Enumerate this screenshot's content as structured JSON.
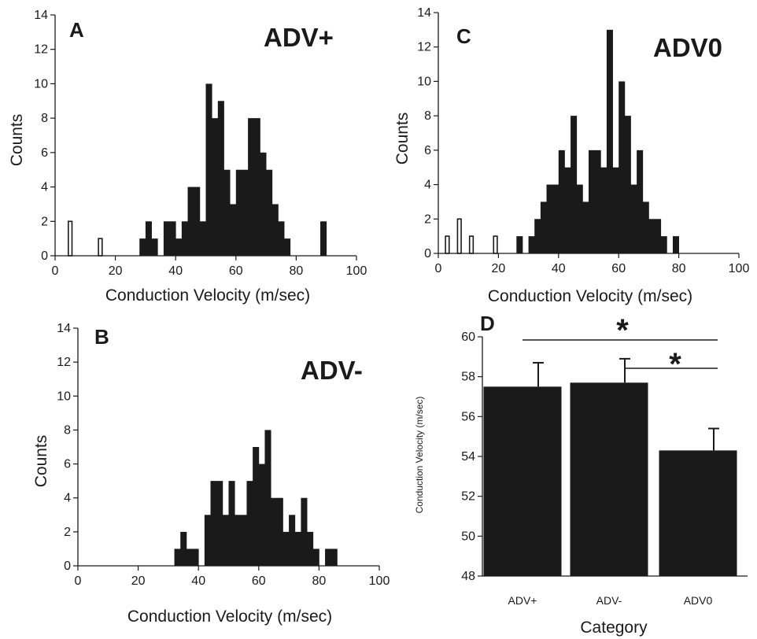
{
  "chart_data": [
    {
      "panel": "A",
      "type": "bar",
      "tag": "ADV+",
      "xlabel": "Conduction Velocity (m/sec)",
      "ylabel": "Counts",
      "xlim": [
        0,
        100
      ],
      "ylim": [
        0,
        14
      ],
      "xticks": [
        "0",
        "20",
        "40",
        "60",
        "80",
        "100"
      ],
      "yticks": [
        "0",
        "2",
        "4",
        "6",
        "8",
        "10",
        "12",
        "14"
      ],
      "bin_width": 2,
      "series": [
        {
          "style": "open",
          "bins": [
            [
              4,
              2
            ],
            [
              14,
              1
            ]
          ]
        },
        {
          "style": "filled",
          "bins": [
            [
              28,
              1
            ],
            [
              30,
              2
            ],
            [
              32,
              1
            ],
            [
              36,
              2
            ],
            [
              38,
              2
            ],
            [
              40,
              1
            ],
            [
              42,
              2
            ],
            [
              44,
              4
            ],
            [
              46,
              4
            ],
            [
              48,
              2
            ],
            [
              50,
              10
            ],
            [
              52,
              8
            ],
            [
              54,
              9
            ],
            [
              56,
              5
            ],
            [
              58,
              3
            ],
            [
              60,
              5
            ],
            [
              62,
              5
            ],
            [
              64,
              8
            ],
            [
              66,
              8
            ],
            [
              68,
              6
            ],
            [
              70,
              5
            ],
            [
              72,
              3
            ],
            [
              74,
              2
            ],
            [
              76,
              1
            ],
            [
              88,
              2
            ]
          ]
        }
      ]
    },
    {
      "panel": "B",
      "type": "bar",
      "tag": "ADV-",
      "xlabel": "Conduction Velocity (m/sec)",
      "ylabel": "Counts",
      "xlim": [
        0,
        100
      ],
      "ylim": [
        0,
        14
      ],
      "xticks": [
        "0",
        "20",
        "40",
        "60",
        "80",
        "100"
      ],
      "yticks": [
        "0",
        "2",
        "4",
        "6",
        "8",
        "10",
        "12",
        "14"
      ],
      "bin_width": 2,
      "series": [
        {
          "style": "filled",
          "bins": [
            [
              32,
              1
            ],
            [
              34,
              2
            ],
            [
              36,
              1
            ],
            [
              38,
              1
            ],
            [
              42,
              3
            ],
            [
              44,
              5
            ],
            [
              46,
              5
            ],
            [
              48,
              3
            ],
            [
              50,
              5
            ],
            [
              52,
              3
            ],
            [
              54,
              3
            ],
            [
              56,
              5
            ],
            [
              58,
              7
            ],
            [
              60,
              6
            ],
            [
              62,
              8
            ],
            [
              64,
              4
            ],
            [
              66,
              4
            ],
            [
              68,
              2
            ],
            [
              70,
              3
            ],
            [
              72,
              2
            ],
            [
              74,
              4
            ],
            [
              76,
              2
            ],
            [
              78,
              1
            ],
            [
              82,
              1
            ],
            [
              84,
              1
            ]
          ]
        }
      ]
    },
    {
      "panel": "C",
      "type": "bar",
      "tag": "ADV0",
      "xlabel": "Conduction Velocity (m/sec)",
      "ylabel": "Counts",
      "xlim": [
        0,
        100
      ],
      "ylim": [
        0,
        14
      ],
      "xticks": [
        "0",
        "20",
        "40",
        "60",
        "80",
        "100"
      ],
      "yticks": [
        "0",
        "2",
        "4",
        "6",
        "8",
        "10",
        "12",
        "14"
      ],
      "bin_width": 2,
      "series": [
        {
          "style": "open",
          "bins": [
            [
              2,
              1
            ],
            [
              6,
              2
            ],
            [
              10,
              1
            ],
            [
              18,
              1
            ]
          ]
        },
        {
          "style": "filled",
          "bins": [
            [
              26,
              1
            ],
            [
              30,
              1
            ],
            [
              32,
              2
            ],
            [
              34,
              3
            ],
            [
              36,
              4
            ],
            [
              38,
              4
            ],
            [
              40,
              6
            ],
            [
              42,
              5
            ],
            [
              44,
              8
            ],
            [
              46,
              4
            ],
            [
              48,
              3
            ],
            [
              50,
              6
            ],
            [
              52,
              6
            ],
            [
              54,
              5
            ],
            [
              56,
              13
            ],
            [
              58,
              5
            ],
            [
              60,
              10
            ],
            [
              62,
              8
            ],
            [
              64,
              4
            ],
            [
              66,
              6
            ],
            [
              68,
              3
            ],
            [
              70,
              2
            ],
            [
              72,
              2
            ],
            [
              74,
              1
            ],
            [
              78,
              1
            ]
          ]
        }
      ]
    },
    {
      "panel": "D",
      "type": "bar",
      "xlabel": "Category",
      "ylabel": "Conduction Velocity (m/sec)",
      "categories": [
        "ADV+",
        "ADV-",
        "ADV0"
      ],
      "values": [
        57.5,
        57.7,
        54.3
      ],
      "errors": [
        1.2,
        1.2,
        1.1
      ],
      "ylim": [
        48,
        60
      ],
      "yticks": [
        "48",
        "50",
        "52",
        "54",
        "56",
        "58",
        "60"
      ],
      "significance": [
        {
          "from": "ADV+",
          "to": "ADV0",
          "marker": "*"
        },
        {
          "from": "ADV-",
          "to": "ADV0",
          "marker": "*"
        }
      ]
    }
  ]
}
